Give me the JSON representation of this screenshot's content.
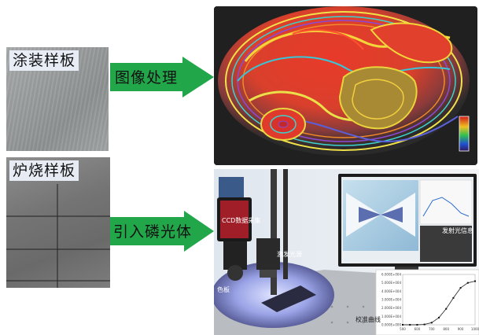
{
  "left_panels": {
    "coated_label": "涂装样板",
    "furnace_label": "炉烧样板"
  },
  "arrows": {
    "top_label": "图像处理",
    "bottom_label": "引入磷光体",
    "color": "#22a64a"
  },
  "photo": {
    "ccd_label": "CCD数据采集",
    "laser_label": "激发光源",
    "emission_label": "发射光信息",
    "plate_label": "色板",
    "calibration_label": "校准曲线",
    "graph_y_ticks": [
      "6.000E+004",
      "5.000E+004",
      "4.000E+004",
      "3.000E+004",
      "2.000E+004",
      "1.000E+004",
      "0.000E+000"
    ],
    "graph_x_ticks": [
      "500",
      "600",
      "700",
      "800",
      "900",
      "1000"
    ],
    "graph_points": [
      {
        "x": 500,
        "y": 0
      },
      {
        "x": 550,
        "y": 0
      },
      {
        "x": 600,
        "y": 0
      },
      {
        "x": 650,
        "y": 400
      },
      {
        "x": 700,
        "y": 2500
      },
      {
        "x": 750,
        "y": 8500
      },
      {
        "x": 800,
        "y": 19000
      },
      {
        "x": 850,
        "y": 32000
      },
      {
        "x": 900,
        "y": 44000
      },
      {
        "x": 950,
        "y": 50000
      },
      {
        "x": 1000,
        "y": 52000
      }
    ]
  }
}
